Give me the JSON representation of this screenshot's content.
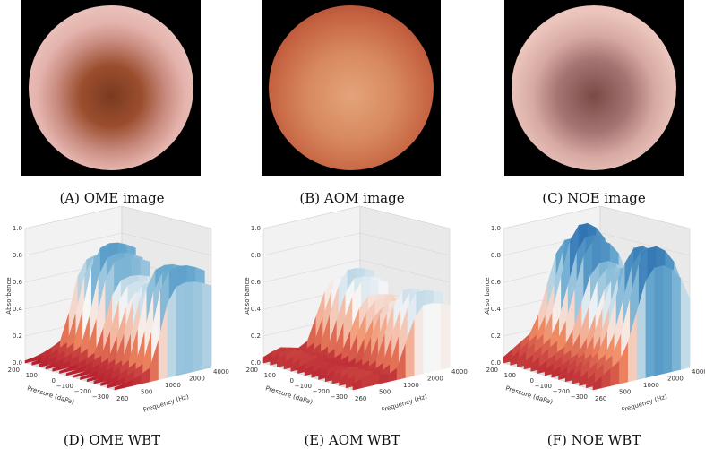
{
  "figure": {
    "panels_top": [
      {
        "caption": "(A)  OME image",
        "tone": "ome"
      },
      {
        "caption": "(B)  AOM image",
        "tone": "aom"
      },
      {
        "caption": "(C)  NOE image",
        "tone": "noe"
      }
    ],
    "panels_bottom": [
      {
        "caption": "(D)  OME WBT"
      },
      {
        "caption": "(E)  AOM WBT"
      },
      {
        "caption": "(F)  NOE WBT"
      }
    ]
  },
  "chart_data": [
    {
      "type": "area",
      "title": "",
      "zlabel": "Absorbance",
      "xlabel": "Pressure (daPa)",
      "ylabel": "Frequency (Hz)",
      "zlim": [
        0.0,
        1.0
      ],
      "z_ticks": [
        "0.0",
        "0.2",
        "0.4",
        "0.6",
        "0.8",
        "1.0"
      ],
      "pressure_ticks": [
        "200",
        "100",
        "0",
        "−100",
        "−200",
        "−300"
      ],
      "frequency_ticks": [
        "260",
        "500",
        "1000",
        "2000",
        "4000"
      ],
      "colormap": [
        "#b2182b",
        "#ef8a62",
        "#f7f7f7",
        "#67a9cf",
        "#2166ac"
      ],
      "peak_absorbance": 0.8,
      "profile": [
        0.02,
        0.03,
        0.05,
        0.08,
        0.12,
        0.35,
        0.65,
        0.78,
        0.8,
        0.79,
        0.76,
        0.72
      ]
    },
    {
      "type": "area",
      "title": "",
      "zlabel": "Absorbance",
      "xlabel": "Pressure (daPa)",
      "ylabel": "Frequency (Hz)",
      "zlim": [
        0.0,
        1.0
      ],
      "z_ticks": [
        "0.0",
        "0.2",
        "0.4",
        "0.6",
        "0.8",
        "1.0"
      ],
      "pressure_ticks": [
        "200",
        "100",
        "0",
        "−100",
        "−200",
        "−300"
      ],
      "frequency_ticks": [
        "260",
        "500",
        "1000",
        "2000",
        "4000"
      ],
      "colormap": [
        "#b2182b",
        "#ef8a62",
        "#f7f7f7",
        "#67a9cf",
        "#2166ac"
      ],
      "peak_absorbance": 0.6,
      "profile": [
        0.05,
        0.08,
        0.1,
        0.08,
        0.06,
        0.1,
        0.3,
        0.5,
        0.6,
        0.6,
        0.58,
        0.55
      ]
    },
    {
      "type": "area",
      "title": "",
      "zlabel": "Absorbance",
      "xlabel": "Pressure (daPa)",
      "ylabel": "Frequency (Hz)",
      "zlim": [
        0.0,
        1.0
      ],
      "z_ticks": [
        "0.0",
        "0.2",
        "0.4",
        "0.6",
        "0.8",
        "1.0"
      ],
      "pressure_ticks": [
        "200",
        "100",
        "0",
        "−100",
        "−200",
        "−300"
      ],
      "frequency_ticks": [
        "260",
        "500",
        "1000",
        "2000",
        "4000"
      ],
      "colormap": [
        "#b2182b",
        "#ef8a62",
        "#f7f7f7",
        "#67a9cf",
        "#2166ac"
      ],
      "peak_absorbance": 0.95,
      "profile": [
        0.05,
        0.1,
        0.15,
        0.2,
        0.35,
        0.6,
        0.85,
        0.95,
        0.95,
        0.9,
        0.8,
        0.6
      ]
    }
  ]
}
